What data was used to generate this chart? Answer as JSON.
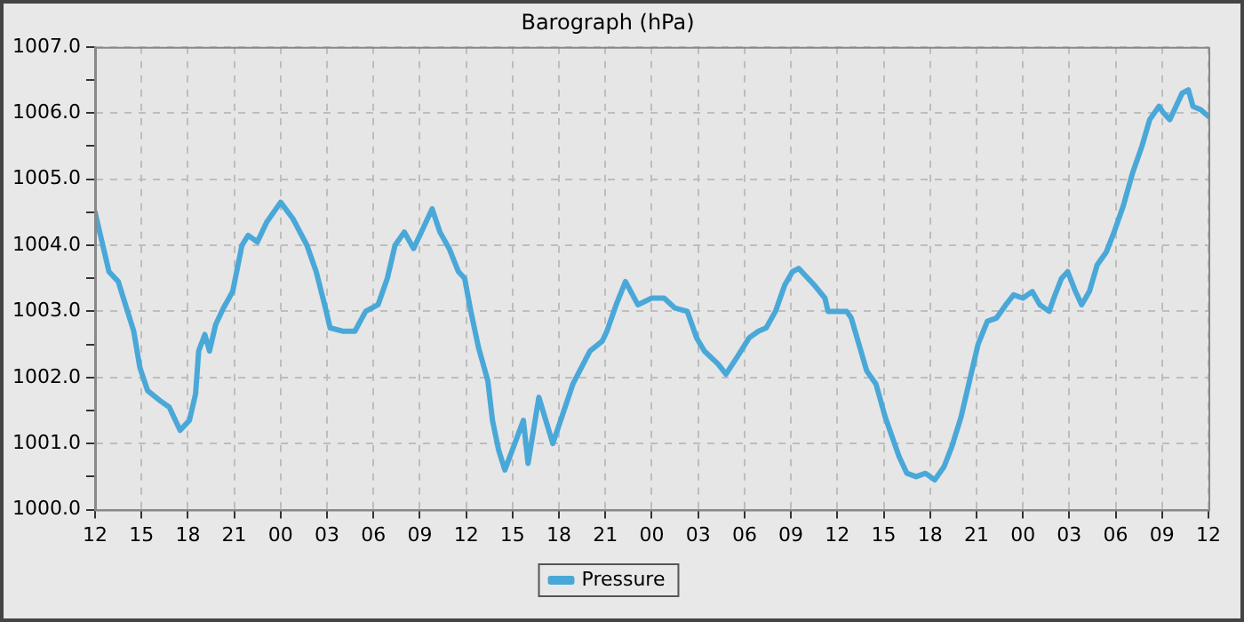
{
  "chart_data": {
    "type": "line",
    "title": "Barograph (hPa)",
    "x": [
      12,
      12.6,
      12.9,
      13.5,
      13.9,
      14.5,
      14.9,
      15.4,
      16.2,
      16.8,
      17.1,
      17.5,
      18.1,
      18.5,
      18.7,
      19.1,
      19.4,
      19.8,
      20.3,
      20.9,
      21.5,
      21.9,
      22.5,
      23.1,
      24,
      24.8,
      25.7,
      26.3,
      26.9,
      27.2,
      28,
      28.8,
      29.5,
      30.3,
      30.9,
      31.4,
      32,
      32.6,
      33.1,
      33.8,
      34.3,
      34.9,
      35.5,
      35.9,
      36.3,
      36.8,
      37.4,
      37.7,
      38.1,
      38.5,
      39.7,
      40,
      40.7,
      41.6,
      42.9,
      44,
      44.8,
      45.1,
      45.7,
      46.3,
      47.1,
      48,
      48.8,
      49.5,
      50.3,
      50.9,
      51.4,
      52.3,
      52.8,
      53.5,
      54.3,
      54.9,
      55.4,
      56,
      56.6,
      57.1,
      57.5,
      57.9,
      58.5,
      59.2,
      59.4,
      60.6,
      60.9,
      61.4,
      61.9,
      62.5,
      63.1,
      63.7,
      64,
      64.5,
      65.1,
      65.7,
      66.3,
      66.9,
      67.4,
      68,
      68.6,
      69.1,
      69.7,
      70.3,
      70.9,
      71.4,
      72,
      72.6,
      73.1,
      73.7,
      74,
      74.5,
      74.9,
      75.4,
      75.8,
      76.3,
      76.8,
      77.4,
      77.9,
      78.5,
      79.1,
      79.7,
      80.2,
      80.8,
      81.1,
      81.5,
      81.9,
      82.3,
      82.7,
      83,
      83.5,
      84
    ],
    "series": [
      {
        "name": "Pressure",
        "color": "#4aa8d8",
        "values": [
          1004.5,
          1003.9,
          1003.6,
          1003.45,
          1003.15,
          1002.7,
          1002.15,
          1001.8,
          1001.65,
          1001.55,
          1001.4,
          1001.2,
          1001.35,
          1001.75,
          1002.4,
          1002.65,
          1002.4,
          1002.8,
          1003.05,
          1003.3,
          1004.0,
          1004.15,
          1004.05,
          1004.35,
          1004.65,
          1004.4,
          1004.0,
          1003.6,
          1003.05,
          1002.75,
          1002.7,
          1002.7,
          1003.0,
          1003.1,
          1003.5,
          1004.0,
          1004.2,
          1003.95,
          1004.2,
          1004.55,
          1004.2,
          1003.95,
          1003.6,
          1003.5,
          1003.0,
          1002.45,
          1001.95,
          1001.35,
          1000.9,
          1000.6,
          1001.35,
          1000.7,
          1001.7,
          1001.0,
          1001.9,
          1002.4,
          1002.55,
          1002.7,
          1003.1,
          1003.45,
          1003.1,
          1003.2,
          1003.2,
          1003.05,
          1003.0,
          1002.6,
          1002.4,
          1002.2,
          1002.05,
          1002.3,
          1002.6,
          1002.7,
          1002.75,
          1003.0,
          1003.4,
          1003.6,
          1003.65,
          1003.55,
          1003.4,
          1003.2,
          1003.0,
          1003.0,
          1002.9,
          1002.5,
          1002.1,
          1001.9,
          1001.4,
          1001.0,
          1000.8,
          1000.55,
          1000.5,
          1000.55,
          1000.45,
          1000.65,
          1000.95,
          1001.4,
          1002.0,
          1002.5,
          1002.85,
          1002.9,
          1003.1,
          1003.25,
          1003.2,
          1003.3,
          1003.1,
          1003.0,
          1003.2,
          1003.5,
          1003.6,
          1003.3,
          1003.1,
          1003.3,
          1003.7,
          1003.9,
          1004.2,
          1004.6,
          1005.1,
          1005.5,
          1005.9,
          1006.1,
          1006.0,
          1005.9,
          1006.1,
          1006.3,
          1006.35,
          1006.1,
          1006.05,
          1005.95
        ]
      }
    ],
    "xlim": [
      12,
      84
    ],
    "xticks": [
      {
        "value": 12,
        "label": "12"
      },
      {
        "value": 15,
        "label": "15"
      },
      {
        "value": 18,
        "label": "18"
      },
      {
        "value": 21,
        "label": "21"
      },
      {
        "value": 24,
        "label": "00"
      },
      {
        "value": 27,
        "label": "03"
      },
      {
        "value": 30,
        "label": "06"
      },
      {
        "value": 33,
        "label": "09"
      },
      {
        "value": 36,
        "label": "12"
      },
      {
        "value": 39,
        "label": "15"
      },
      {
        "value": 42,
        "label": "18"
      },
      {
        "value": 45,
        "label": "21"
      },
      {
        "value": 48,
        "label": "00"
      },
      {
        "value": 51,
        "label": "03"
      },
      {
        "value": 54,
        "label": "06"
      },
      {
        "value": 57,
        "label": "09"
      },
      {
        "value": 60,
        "label": "12"
      },
      {
        "value": 63,
        "label": "15"
      },
      {
        "value": 66,
        "label": "18"
      },
      {
        "value": 69,
        "label": "21"
      },
      {
        "value": 72,
        "label": "00"
      },
      {
        "value": 75,
        "label": "03"
      },
      {
        "value": 78,
        "label": "06"
      },
      {
        "value": 81,
        "label": "09"
      },
      {
        "value": 84,
        "label": "12"
      }
    ],
    "ylim": [
      1000,
      1007
    ],
    "yticks": [
      {
        "value": 1000,
        "label": "1000.0"
      },
      {
        "value": 1000.5,
        "label": null
      },
      {
        "value": 1001,
        "label": "1001.0"
      },
      {
        "value": 1001.5,
        "label": null
      },
      {
        "value": 1002,
        "label": "1002.0"
      },
      {
        "value": 1002.5,
        "label": null
      },
      {
        "value": 1003,
        "label": "1003.0"
      },
      {
        "value": 1003.5,
        "label": null
      },
      {
        "value": 1004,
        "label": "1004.0"
      },
      {
        "value": 1004.5,
        "label": null
      },
      {
        "value": 1005,
        "label": "1005.0"
      },
      {
        "value": 1005.5,
        "label": null
      },
      {
        "value": 1006,
        "label": "1006.0"
      },
      {
        "value": 1006.5,
        "label": null
      },
      {
        "value": 1007,
        "label": "1007.0"
      }
    ],
    "grid": true,
    "legend": "bottom",
    "marker": "none",
    "line_style": "solid"
  }
}
